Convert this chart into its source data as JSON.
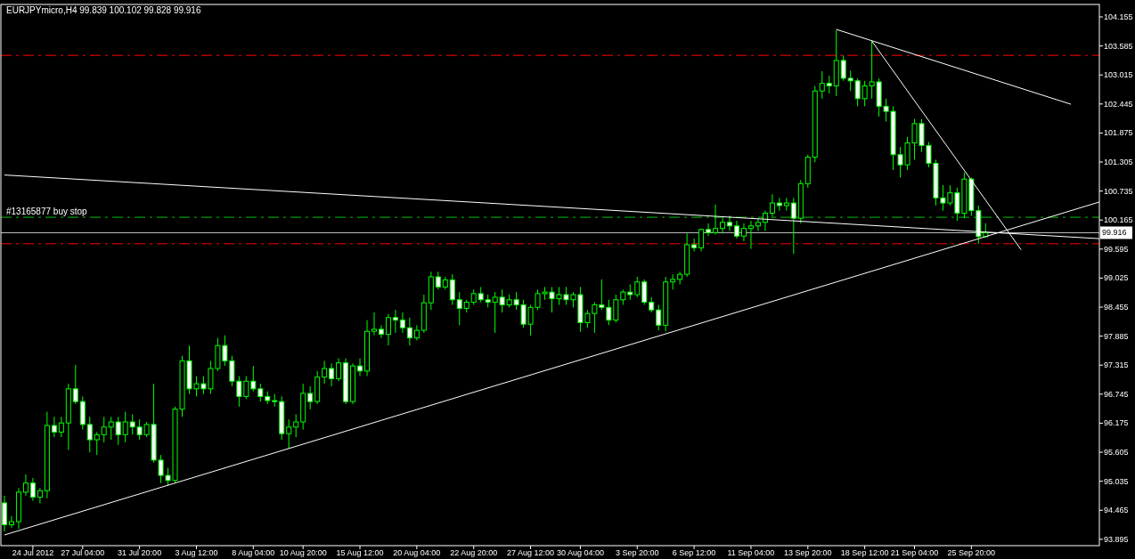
{
  "chart_data": {
    "type": "candlestick",
    "title": "EURJPYmicro,H4  99.839 100.102 99.828 99.916",
    "color": "#00ff00",
    "categories": [
      null,
      null,
      null,
      null,
      "24 Jul 2012",
      null,
      null,
      null,
      null,
      null,
      null,
      "27 Jul 04:00",
      null,
      null,
      null,
      null,
      null,
      null,
      null,
      "31 Jul 20:00",
      null,
      null,
      null,
      null,
      null,
      null,
      null,
      "3 Aug 12:00",
      null,
      null,
      null,
      null,
      null,
      null,
      null,
      "8 Aug 04:00",
      null,
      null,
      null,
      null,
      null,
      null,
      "10 Aug 20:00",
      null,
      null,
      null,
      null,
      null,
      null,
      null,
      "15 Aug 12:00",
      null,
      null,
      null,
      null,
      null,
      null,
      null,
      "20 Aug 04:00",
      null,
      null,
      null,
      null,
      null,
      null,
      null,
      "22 Aug 20:00",
      null,
      null,
      null,
      null,
      null,
      null,
      null,
      "27 Aug 12:00",
      null,
      null,
      null,
      null,
      null,
      null,
      "30 Aug 04:00",
      null,
      null,
      null,
      null,
      null,
      null,
      null,
      "3 Sep 20:00",
      null,
      null,
      null,
      null,
      null,
      null,
      null,
      "6 Sep 12:00",
      null,
      null,
      null,
      null,
      null,
      null,
      null,
      "11 Sep 04:00",
      null,
      null,
      null,
      null,
      null,
      null,
      null,
      "13 Sep 20:00",
      null,
      null,
      null,
      null,
      null,
      null,
      null,
      "18 Sep 12:00",
      null,
      null,
      null,
      null,
      null,
      null,
      "21 Sep 04:00",
      null,
      null,
      null,
      null,
      null,
      null,
      null,
      "25 Sep 20:00",
      null,
      null,
      null,
      null,
      null,
      null,
      null,
      null,
      null,
      null,
      null,
      null,
      null,
      null,
      null,
      null,
      null,
      null
    ],
    "ohlc": [
      [
        94.61,
        94.75,
        94.05,
        94.18
      ],
      [
        94.18,
        94.35,
        94.12,
        94.24
      ],
      [
        94.24,
        94.9,
        94.1,
        94.82
      ],
      [
        94.82,
        95.17,
        94.75,
        95.0
      ],
      [
        95.0,
        95.1,
        94.65,
        94.72
      ],
      [
        94.72,
        94.9,
        94.6,
        94.85
      ],
      [
        94.85,
        96.4,
        94.7,
        96.13
      ],
      [
        96.13,
        96.3,
        95.9,
        96.0
      ],
      [
        96.0,
        96.3,
        95.9,
        96.18
      ],
      [
        96.18,
        96.95,
        95.65,
        96.85
      ],
      [
        96.85,
        97.32,
        96.55,
        96.6
      ],
      [
        96.6,
        96.7,
        96.05,
        96.15
      ],
      [
        96.15,
        96.3,
        95.6,
        95.85
      ],
      [
        95.85,
        96.0,
        95.55,
        95.95
      ],
      [
        95.95,
        96.3,
        95.8,
        96.1
      ],
      [
        96.1,
        96.3,
        95.85,
        96.2
      ],
      [
        96.2,
        96.3,
        95.75,
        95.95
      ],
      [
        95.95,
        96.4,
        95.8,
        96.2
      ],
      [
        96.2,
        96.35,
        95.95,
        96.1
      ],
      [
        96.1,
        96.25,
        95.85,
        95.95
      ],
      [
        95.95,
        96.2,
        95.9,
        96.15
      ],
      [
        96.15,
        96.95,
        95.4,
        95.45
      ],
      [
        95.45,
        95.55,
        95.0,
        95.15
      ],
      [
        95.15,
        95.3,
        94.95,
        95.05
      ],
      [
        95.05,
        96.5,
        95.0,
        96.45
      ],
      [
        96.45,
        97.5,
        96.3,
        97.4
      ],
      [
        97.4,
        97.7,
        96.75,
        96.85
      ],
      [
        96.85,
        97.1,
        96.7,
        96.95
      ],
      [
        96.95,
        97.1,
        96.75,
        96.85
      ],
      [
        96.85,
        97.4,
        96.75,
        97.25
      ],
      [
        97.25,
        97.85,
        97.2,
        97.7
      ],
      [
        97.7,
        97.9,
        97.3,
        97.4
      ],
      [
        97.4,
        97.5,
        96.9,
        97.0
      ],
      [
        97.0,
        97.1,
        96.5,
        96.7
      ],
      [
        96.7,
        97.1,
        96.65,
        97.0
      ],
      [
        97.0,
        97.3,
        96.8,
        96.85
      ],
      [
        96.85,
        96.95,
        96.6,
        96.7
      ],
      [
        96.7,
        96.8,
        96.55,
        96.62
      ],
      [
        96.62,
        96.75,
        96.5,
        96.6
      ],
      [
        96.6,
        96.7,
        95.85,
        95.97
      ],
      [
        95.97,
        96.25,
        95.68,
        96.1
      ],
      [
        96.1,
        96.35,
        95.9,
        96.2
      ],
      [
        96.2,
        96.95,
        96.05,
        96.76
      ],
      [
        96.76,
        96.9,
        96.45,
        96.6
      ],
      [
        96.6,
        97.2,
        96.55,
        97.08
      ],
      [
        97.08,
        97.4,
        96.95,
        97.25
      ],
      [
        97.25,
        97.35,
        96.9,
        97.05
      ],
      [
        97.05,
        97.45,
        97.0,
        97.36
      ],
      [
        97.36,
        97.45,
        96.55,
        96.6
      ],
      [
        96.6,
        97.35,
        96.55,
        97.3
      ],
      [
        97.3,
        97.45,
        97.1,
        97.2
      ],
      [
        97.2,
        98.2,
        97.1,
        97.98
      ],
      [
        97.98,
        98.35,
        97.9,
        98.02
      ],
      [
        98.02,
        98.1,
        97.85,
        97.92
      ],
      [
        97.92,
        98.32,
        97.7,
        98.25
      ],
      [
        98.25,
        98.4,
        97.95,
        98.2
      ],
      [
        98.2,
        98.35,
        97.95,
        98.05
      ],
      [
        98.05,
        98.25,
        97.7,
        97.85
      ],
      [
        97.85,
        98.1,
        97.8,
        98.0
      ],
      [
        98.0,
        98.7,
        97.95,
        98.54
      ],
      [
        98.54,
        99.15,
        98.4,
        99.05
      ],
      [
        99.05,
        99.15,
        98.8,
        98.85
      ],
      [
        98.85,
        99.05,
        98.8,
        98.99
      ],
      [
        98.99,
        99.1,
        98.5,
        98.6
      ],
      [
        98.6,
        98.75,
        98.1,
        98.43
      ],
      [
        98.43,
        98.6,
        98.35,
        98.55
      ],
      [
        98.55,
        98.8,
        98.5,
        98.72
      ],
      [
        98.72,
        98.85,
        98.55,
        98.6
      ],
      [
        98.6,
        98.7,
        98.45,
        98.55
      ],
      [
        98.55,
        98.75,
        97.95,
        98.65
      ],
      [
        98.65,
        98.8,
        98.35,
        98.5
      ],
      [
        98.5,
        98.7,
        98.45,
        98.6
      ],
      [
        98.6,
        98.75,
        98.4,
        98.5
      ],
      [
        98.5,
        98.6,
        98.05,
        98.12
      ],
      [
        98.12,
        98.5,
        97.9,
        98.45
      ],
      [
        98.45,
        98.8,
        98.4,
        98.72
      ],
      [
        98.72,
        98.85,
        98.6,
        98.75
      ],
      [
        98.75,
        98.85,
        98.35,
        98.62
      ],
      [
        98.62,
        98.85,
        98.5,
        98.7
      ],
      [
        98.7,
        98.85,
        98.5,
        98.6
      ],
      [
        98.6,
        98.75,
        98.45,
        98.7
      ],
      [
        98.7,
        98.85,
        97.97,
        98.15
      ],
      [
        98.15,
        98.4,
        98.05,
        98.33
      ],
      [
        98.33,
        98.55,
        97.95,
        98.5
      ],
      [
        98.5,
        99.0,
        98.4,
        98.45
      ],
      [
        98.45,
        98.6,
        98.1,
        98.2
      ],
      [
        98.2,
        98.7,
        98.15,
        98.6
      ],
      [
        98.6,
        98.8,
        98.5,
        98.75
      ],
      [
        98.75,
        98.9,
        98.6,
        98.7
      ],
      [
        98.7,
        99.05,
        98.65,
        98.95
      ],
      [
        98.95,
        99.0,
        98.5,
        98.55
      ],
      [
        98.55,
        98.65,
        98.35,
        98.4
      ],
      [
        98.4,
        98.5,
        98.0,
        98.1
      ],
      [
        98.1,
        99.05,
        97.98,
        98.95
      ],
      [
        98.95,
        99.1,
        98.8,
        99.0
      ],
      [
        99.0,
        99.15,
        98.9,
        99.1
      ],
      [
        99.1,
        99.9,
        99.05,
        99.68
      ],
      [
        99.68,
        99.8,
        99.55,
        99.62
      ],
      [
        99.62,
        100.0,
        99.55,
        99.98
      ],
      [
        99.98,
        100.1,
        99.85,
        99.92
      ],
      [
        99.92,
        100.47,
        99.88,
        100.0
      ],
      [
        100.0,
        100.2,
        99.9,
        100.12
      ],
      [
        100.12,
        100.25,
        99.95,
        100.05
      ],
      [
        100.05,
        100.15,
        99.8,
        99.85
      ],
      [
        99.85,
        100.1,
        99.75,
        100.0
      ],
      [
        100.0,
        100.15,
        99.6,
        100.05
      ],
      [
        100.05,
        100.2,
        99.95,
        100.12
      ],
      [
        100.12,
        100.35,
        99.95,
        100.3
      ],
      [
        100.3,
        100.67,
        100.2,
        100.5
      ],
      [
        100.5,
        100.6,
        100.35,
        100.45
      ],
      [
        100.45,
        100.6,
        100.35,
        100.5
      ],
      [
        100.5,
        100.6,
        99.5,
        100.2
      ],
      [
        100.2,
        100.95,
        100.1,
        100.88
      ],
      [
        100.88,
        101.45,
        100.8,
        101.4
      ],
      [
        101.4,
        102.8,
        101.3,
        102.7
      ],
      [
        102.7,
        103.09,
        102.55,
        102.85
      ],
      [
        102.85,
        103.0,
        102.65,
        102.8
      ],
      [
        102.8,
        103.9,
        102.6,
        103.3
      ],
      [
        103.3,
        103.4,
        102.9,
        102.95
      ],
      [
        102.95,
        103.1,
        102.7,
        102.9
      ],
      [
        102.9,
        102.95,
        102.4,
        102.55
      ],
      [
        102.55,
        102.9,
        102.4,
        102.8
      ],
      [
        102.8,
        103.68,
        102.55,
        102.88
      ],
      [
        102.88,
        102.95,
        102.2,
        102.4
      ],
      [
        102.4,
        102.55,
        102.1,
        102.3
      ],
      [
        102.3,
        102.4,
        101.15,
        101.45
      ],
      [
        101.45,
        101.6,
        101.0,
        101.25
      ],
      [
        101.25,
        101.8,
        101.15,
        101.68
      ],
      [
        101.68,
        102.15,
        101.35,
        102.06
      ],
      [
        102.06,
        102.15,
        101.5,
        101.63
      ],
      [
        101.63,
        101.7,
        101.2,
        101.28
      ],
      [
        101.28,
        101.35,
        100.45,
        100.6
      ],
      [
        100.6,
        100.85,
        100.35,
        100.5
      ],
      [
        100.5,
        100.85,
        100.45,
        100.7
      ],
      [
        100.7,
        100.8,
        100.15,
        100.3
      ],
      [
        100.3,
        101.1,
        100.2,
        100.97
      ],
      [
        100.97,
        101.0,
        100.25,
        100.35
      ],
      [
        100.35,
        100.45,
        99.7,
        99.84
      ],
      [
        99.839,
        100.102,
        99.828,
        99.916
      ],
      null,
      null,
      null,
      null,
      null,
      null,
      null,
      null,
      null,
      null,
      null,
      null,
      null,
      null,
      null,
      null
    ],
    "series": [
      {
        "type": "line",
        "color": "#ffffff",
        "values": [
          93.98,
          null,
          null,
          null,
          null,
          null,
          null,
          null,
          null,
          null,
          null,
          null,
          null,
          null,
          null,
          null,
          null,
          null,
          null,
          null,
          null,
          null,
          null,
          null,
          null,
          null,
          null,
          null,
          null,
          null,
          null,
          null,
          null,
          null,
          null,
          null,
          null,
          null,
          null,
          null,
          null,
          null,
          null,
          null,
          null,
          null,
          null,
          null,
          null,
          null,
          null,
          null,
          null,
          null,
          null,
          null,
          null,
          null,
          null,
          null,
          null,
          null,
          null,
          null,
          null,
          null,
          null,
          null,
          null,
          null,
          null,
          null,
          null,
          null,
          null,
          null,
          null,
          null,
          null,
          null,
          null,
          null,
          null,
          null,
          null,
          null,
          null,
          null,
          null,
          null,
          null,
          null,
          null,
          null,
          null,
          null,
          null,
          null,
          null,
          null,
          null,
          null,
          null,
          null,
          null,
          null,
          null,
          null,
          null,
          null,
          null,
          null,
          null,
          null,
          null,
          null,
          null,
          null,
          null,
          null,
          null,
          null,
          null,
          null,
          null,
          null,
          null,
          null,
          null,
          null,
          null,
          null,
          null,
          null,
          null,
          null,
          null,
          null,
          null,
          null,
          null,
          null,
          null,
          null,
          null,
          null,
          null,
          null,
          null,
          null,
          null,
          null,
          null,
          null,
          100.52
        ]
      },
      {
        "type": "line",
        "color": "#ffffff",
        "values": [
          101.05,
          null,
          null,
          null,
          null,
          null,
          null,
          null,
          null,
          null,
          null,
          null,
          null,
          null,
          null,
          null,
          null,
          null,
          null,
          null,
          null,
          null,
          null,
          null,
          null,
          null,
          null,
          null,
          null,
          null,
          null,
          null,
          null,
          null,
          null,
          null,
          null,
          null,
          null,
          null,
          null,
          null,
          null,
          null,
          null,
          null,
          null,
          null,
          null,
          null,
          null,
          null,
          null,
          null,
          null,
          null,
          null,
          null,
          null,
          null,
          null,
          null,
          null,
          null,
          null,
          null,
          null,
          null,
          null,
          null,
          null,
          null,
          null,
          null,
          null,
          null,
          null,
          null,
          null,
          null,
          null,
          null,
          null,
          null,
          null,
          null,
          null,
          null,
          null,
          null,
          null,
          null,
          null,
          null,
          null,
          null,
          null,
          null,
          null,
          null,
          null,
          null,
          null,
          null,
          null,
          null,
          null,
          null,
          null,
          null,
          null,
          null,
          null,
          null,
          null,
          null,
          null,
          null,
          null,
          null,
          null,
          null,
          null,
          null,
          null,
          null,
          null,
          null,
          null,
          null,
          null,
          null,
          null,
          null,
          null,
          null,
          null,
          null,
          null,
          null,
          null,
          null,
          null,
          null,
          null,
          null,
          null,
          null,
          null,
          null,
          null,
          null,
          null,
          null,
          99.8
        ]
      },
      {
        "type": "line",
        "color": "#ffffff",
        "values": [
          null,
          null,
          null,
          null,
          null,
          null,
          null,
          null,
          null,
          null,
          null,
          null,
          null,
          null,
          null,
          null,
          null,
          null,
          null,
          null,
          null,
          null,
          null,
          null,
          null,
          null,
          null,
          null,
          null,
          null,
          null,
          null,
          null,
          null,
          null,
          null,
          null,
          null,
          null,
          null,
          null,
          null,
          null,
          null,
          null,
          null,
          null,
          null,
          null,
          null,
          null,
          null,
          null,
          null,
          null,
          null,
          null,
          null,
          null,
          null,
          null,
          null,
          null,
          null,
          null,
          null,
          null,
          null,
          null,
          null,
          null,
          null,
          null,
          null,
          null,
          null,
          null,
          null,
          null,
          null,
          null,
          null,
          null,
          null,
          null,
          null,
          null,
          null,
          null,
          null,
          null,
          null,
          null,
          null,
          null,
          null,
          null,
          null,
          null,
          null,
          null,
          null,
          null,
          null,
          null,
          null,
          null,
          null,
          null,
          null,
          null,
          null,
          null,
          null,
          null,
          null,
          null,
          103.91,
          null,
          null,
          null,
          null,
          null,
          null,
          null,
          null,
          null,
          null,
          null,
          null,
          null,
          null,
          null,
          null,
          null,
          null,
          null,
          null,
          null,
          null,
          null,
          null,
          null,
          null,
          null,
          null,
          null,
          null,
          null,
          null,
          102.44,
          null,
          null,
          null,
          null
        ]
      },
      {
        "type": "line",
        "color": "#ffffff",
        "values": [
          null,
          null,
          null,
          null,
          null,
          null,
          null,
          null,
          null,
          null,
          null,
          null,
          null,
          null,
          null,
          null,
          null,
          null,
          null,
          null,
          null,
          null,
          null,
          null,
          null,
          null,
          null,
          null,
          null,
          null,
          null,
          null,
          null,
          null,
          null,
          null,
          null,
          null,
          null,
          null,
          null,
          null,
          null,
          null,
          null,
          null,
          null,
          null,
          null,
          null,
          null,
          null,
          null,
          null,
          null,
          null,
          null,
          null,
          null,
          null,
          null,
          null,
          null,
          null,
          null,
          null,
          null,
          null,
          null,
          null,
          null,
          null,
          null,
          null,
          null,
          null,
          null,
          null,
          null,
          null,
          null,
          null,
          null,
          null,
          null,
          null,
          null,
          null,
          null,
          null,
          null,
          null,
          null,
          null,
          null,
          null,
          null,
          null,
          null,
          null,
          null,
          null,
          null,
          null,
          null,
          null,
          null,
          null,
          null,
          null,
          null,
          null,
          null,
          null,
          null,
          null,
          null,
          null,
          null,
          null,
          null,
          null,
          103.68,
          null,
          null,
          null,
          null,
          null,
          null,
          null,
          null,
          null,
          null,
          null,
          null,
          null,
          null,
          null,
          null,
          null,
          null,
          null,
          null,
          99.58,
          null,
          null,
          null,
          null,
          null,
          null,
          null,
          null,
          null,
          null,
          null
        ]
      }
    ],
    "ref_lines": [
      {
        "axis": "y",
        "value": 103.4,
        "color": "#ff0000",
        "line_style": "dashed"
      },
      {
        "axis": "y",
        "value": 99.7,
        "color": "#ff0000",
        "line_style": "dashed"
      },
      {
        "axis": "y",
        "value": 100.22,
        "color": "#00c000",
        "line_style": "dashed",
        "label": "#13165877 buy stop"
      },
      {
        "axis": "y",
        "value": 99.916,
        "color": "#c0c0c0",
        "line_style": "solid",
        "label": "99.916"
      }
    ],
    "ylim": [
      93.77,
      104.4
    ],
    "yticks": [
      93.895,
      94.465,
      95.035,
      95.605,
      96.175,
      96.745,
      97.315,
      97.885,
      98.455,
      99.025,
      99.595,
      100.165,
      100.735,
      101.305,
      101.875,
      102.445,
      103.015,
      103.585,
      104.155
    ],
    "grid": false
  }
}
